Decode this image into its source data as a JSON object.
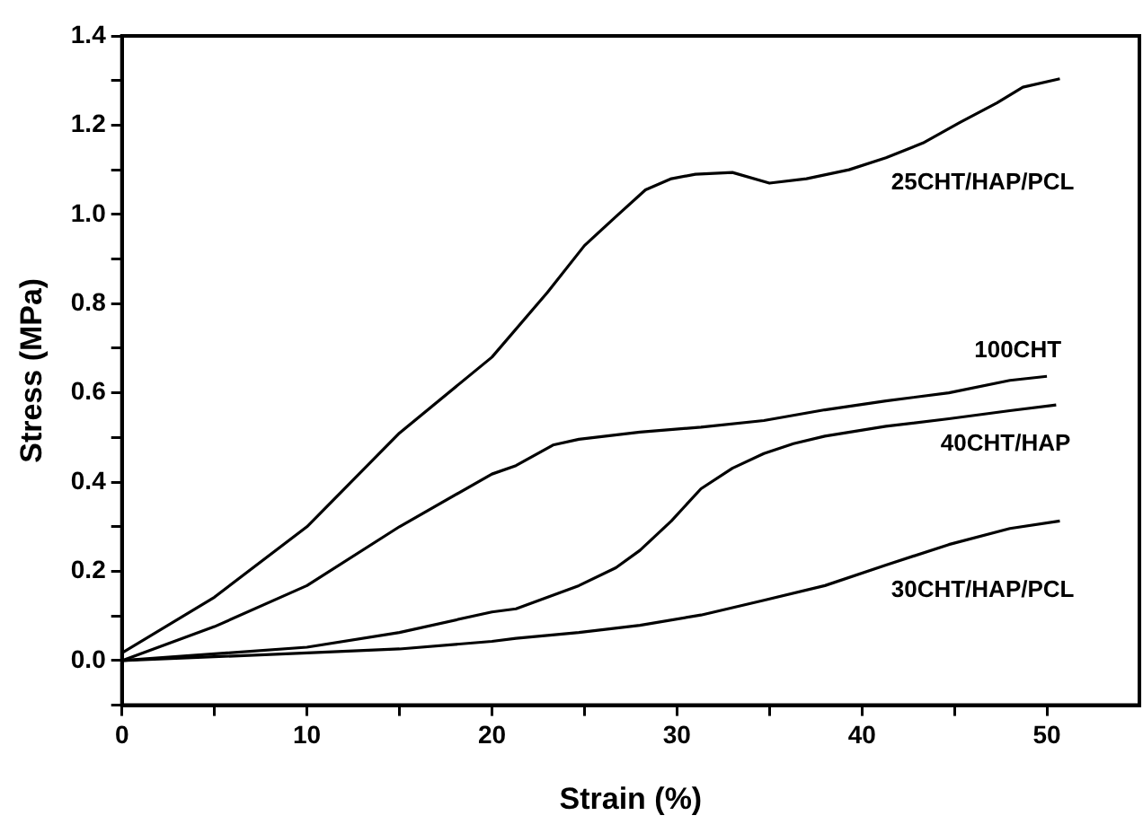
{
  "chart_data": {
    "type": "line",
    "xlabel": "Strain (%)",
    "ylabel": "Stress (MPa)",
    "xlim": [
      0,
      55
    ],
    "xticks": [
      0,
      {
        "value": 5,
        "label": null
      },
      10,
      {
        "value": 15,
        "label": null
      },
      20,
      {
        "value": 25,
        "label": null
      },
      30,
      {
        "value": 35,
        "label": null
      },
      40,
      {
        "value": 45,
        "label": null
      },
      50
    ],
    "ylim": [
      -0.1,
      1.4
    ],
    "yticks": [
      {
        "value": -0.1,
        "label": null
      },
      {
        "value": 0,
        "label": "0.0"
      },
      {
        "value": 0.1,
        "label": null
      },
      0.2,
      {
        "value": 0.3,
        "label": null
      },
      0.4,
      {
        "value": 0.5,
        "label": null
      },
      0.6,
      {
        "value": 0.7,
        "label": null
      },
      0.8,
      {
        "value": 0.9,
        "label": null
      },
      {
        "value": 1.0,
        "label": "1.0"
      },
      {
        "value": 1.1,
        "label": null
      },
      1.2,
      {
        "value": 1.3,
        "label": null
      },
      1.4
    ],
    "grid": false,
    "legend": false,
    "marker": "none",
    "line_style": "solid",
    "series": [
      {
        "name": "25CHT/HAP/PCL",
        "color": "#000000",
        "x": [
          0,
          5,
          10,
          15,
          20,
          23,
          25,
          26.7,
          28.3,
          29.7,
          31,
          33,
          35,
          37,
          39.3,
          41.3,
          43.3,
          45.3,
          47.3,
          48.7,
          50.7
        ],
        "values": [
          0.017,
          0.142,
          0.3,
          0.51,
          0.68,
          0.825,
          0.93,
          0.995,
          1.055,
          1.08,
          1.09,
          1.094,
          1.07,
          1.08,
          1.1,
          1.127,
          1.16,
          1.206,
          1.25,
          1.285,
          1.304
        ]
      },
      {
        "name": "100CHT",
        "color": "#000000",
        "x": [
          0,
          5,
          10,
          15,
          20,
          21.3,
          23.3,
          24.7,
          28,
          31.3,
          34.7,
          38,
          41.3,
          44.7,
          48,
          50
        ],
        "values": [
          0,
          0.076,
          0.168,
          0.3,
          0.418,
          0.437,
          0.483,
          0.496,
          0.512,
          0.523,
          0.538,
          0.562,
          0.582,
          0.6,
          0.628,
          0.637
        ]
      },
      {
        "name": "40CHT/HAP",
        "color": "#000000",
        "x": [
          0,
          10,
          15,
          20,
          21.3,
          24.7,
          26.7,
          28,
          29.7,
          31.3,
          33,
          34.7,
          36.3,
          38,
          41.3,
          44.7,
          48,
          50.5
        ],
        "values": [
          0,
          0.03,
          0.063,
          0.109,
          0.116,
          0.168,
          0.208,
          0.247,
          0.313,
          0.385,
          0.431,
          0.464,
          0.486,
          0.503,
          0.525,
          0.542,
          0.56,
          0.573
        ]
      },
      {
        "name": "30CHT/HAP/PCL",
        "color": "#000000",
        "x": [
          0,
          10,
          15,
          20,
          21.3,
          24.7,
          28,
          31.3,
          34.7,
          38,
          41.3,
          44.7,
          48,
          50.7
        ],
        "values": [
          0,
          0.017,
          0.026,
          0.043,
          0.05,
          0.063,
          0.079,
          0.102,
          0.135,
          0.168,
          0.214,
          0.26,
          0.296,
          0.313
        ]
      }
    ]
  }
}
